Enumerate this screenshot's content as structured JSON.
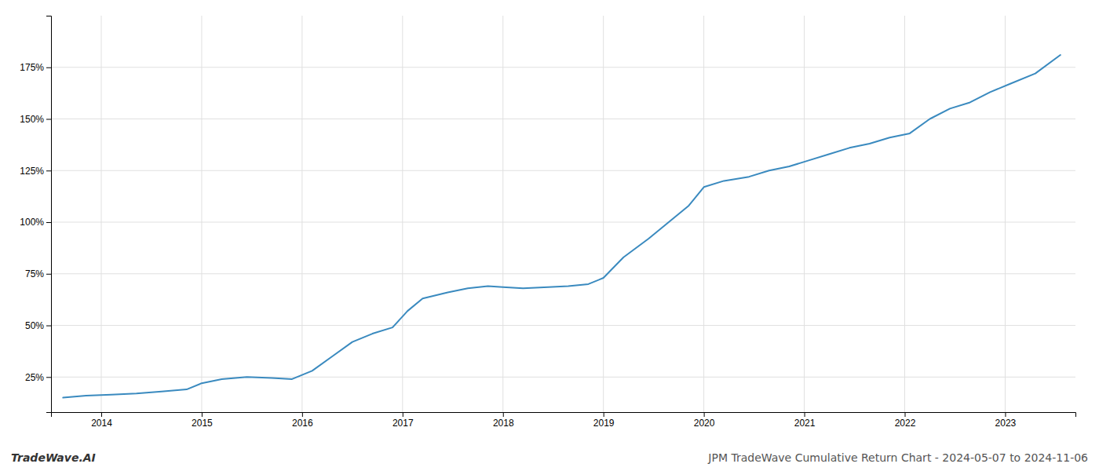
{
  "chart_data": {
    "type": "line",
    "title": "JPM TradeWave Cumulative Return Chart - 2024-05-07 to 2024-11-06",
    "annotations": [
      "TradeWave.AI"
    ],
    "color": "#3a8abf",
    "grid": true,
    "x": [
      2013.62,
      2013.85,
      2014.1,
      2014.35,
      2014.6,
      2014.85,
      2015.0,
      2015.2,
      2015.45,
      2015.7,
      2015.9,
      2016.1,
      2016.3,
      2016.5,
      2016.7,
      2016.9,
      2017.05,
      2017.2,
      2017.45,
      2017.65,
      2017.85,
      2018.0,
      2018.2,
      2018.45,
      2018.65,
      2018.85,
      2019.0,
      2019.2,
      2019.45,
      2019.65,
      2019.85,
      2020.0,
      2020.2,
      2020.45,
      2020.65,
      2020.85,
      2021.05,
      2021.25,
      2021.45,
      2021.65,
      2021.85,
      2022.05,
      2022.25,
      2022.45,
      2022.65,
      2022.85,
      2023.05,
      2023.3,
      2023.55
    ],
    "values": [
      15,
      16,
      16.5,
      17,
      18,
      19,
      22,
      24,
      25,
      24.5,
      24,
      28,
      35,
      42,
      46,
      49,
      57,
      63,
      66,
      68,
      69,
      68.5,
      68,
      68.5,
      69,
      70,
      73,
      83,
      92,
      100,
      108,
      117,
      120,
      122,
      125,
      127,
      130,
      133,
      136,
      138,
      141,
      143,
      150,
      155,
      158,
      163,
      167,
      172,
      181
    ],
    "xlim": [
      2013.5,
      2023.7
    ],
    "ylim": [
      8,
      200
    ],
    "xticks": [
      2014,
      2015,
      2016,
      2017,
      2018,
      2019,
      2020,
      2021,
      2022,
      2023
    ],
    "yticks": [
      {
        "value": 25,
        "label": "25%"
      },
      {
        "value": 50,
        "label": "50%"
      },
      {
        "value": 75,
        "label": "75%"
      },
      {
        "value": 100,
        "label": "100%"
      },
      {
        "value": 125,
        "label": "125%"
      },
      {
        "value": 150,
        "label": "150%"
      },
      {
        "value": 175,
        "label": "175%"
      }
    ]
  }
}
